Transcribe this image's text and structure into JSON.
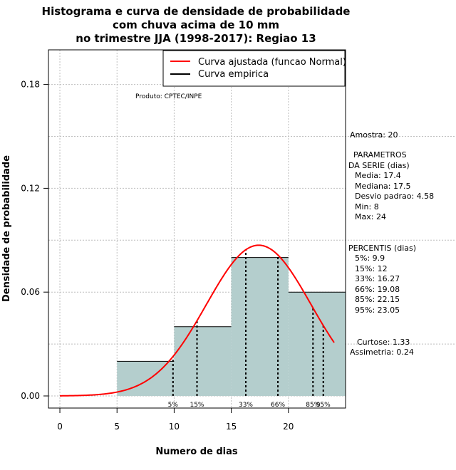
{
  "chart_data": {
    "type": "bar",
    "title_lines": [
      "Histograma e curva de densidade de probabilidade",
      "com chuva acima de 10 mm",
      "no trimestre JJA (1998-2017): Regiao 13"
    ],
    "xlabel": "Numero de dias",
    "ylabel": "Densidade de probabilidade",
    "xlim": [
      -1,
      25
    ],
    "ylim": [
      -0.007,
      0.2
    ],
    "x_ticks": [
      0,
      5,
      10,
      15,
      20
    ],
    "y_ticks": [
      0.0,
      0.06,
      0.12,
      0.18
    ],
    "y_tick_labels": [
      "0.00",
      "0.06",
      "0.12",
      "0.18"
    ],
    "bins": [
      {
        "from": 5,
        "to": 10,
        "density": 0.02
      },
      {
        "from": 10,
        "to": 15,
        "density": 0.04
      },
      {
        "from": 15,
        "to": 20,
        "density": 0.08
      },
      {
        "from": 20,
        "to": 25,
        "density": 0.06
      }
    ],
    "normal_curve": {
      "mean": 17.4,
      "sd": 4.58,
      "x_from": 0,
      "x_to": 24
    },
    "percentile_lines": [
      {
        "label": "5%",
        "value": 9.9
      },
      {
        "label": "15%",
        "value": 12
      },
      {
        "label": "33%",
        "value": 16.27
      },
      {
        "label": "66%",
        "value": 19.08
      },
      {
        "label": "85%",
        "value": 22.15
      },
      {
        "label": "95%",
        "value": 23.05
      }
    ],
    "legend": [
      {
        "label": "Curva ajustada (funcao Normal)",
        "color": "#ff0000"
      },
      {
        "label": "Curva empirica",
        "color": "#000000"
      }
    ],
    "product_note": "Produto: CPTEC/INPE",
    "colors": {
      "bar_fill": "#b4cecd",
      "curve": "#ff0000",
      "grid": "#bebebe"
    }
  },
  "side_panel": {
    "amostra": "Amostra: 20",
    "param_title_1": "PARAMETROS",
    "param_title_2": "DA SERIE (dias)",
    "media": "Media: 17.4",
    "mediana": "Mediana: 17.5",
    "desvio": "Desvio padrao: 4.58",
    "min": "Min: 8",
    "max": "Max: 24",
    "percentis_title": "PERCENTIS (dias)",
    "p5": "5%: 9.9",
    "p15": "15%: 12",
    "p33": "33%: 16.27",
    "p66": "66%: 19.08",
    "p85": "85%: 22.15",
    "p95": "95%: 23.05",
    "curtose": "Curtose: 1.33",
    "assimetria": "Assimetria: 0.24"
  }
}
